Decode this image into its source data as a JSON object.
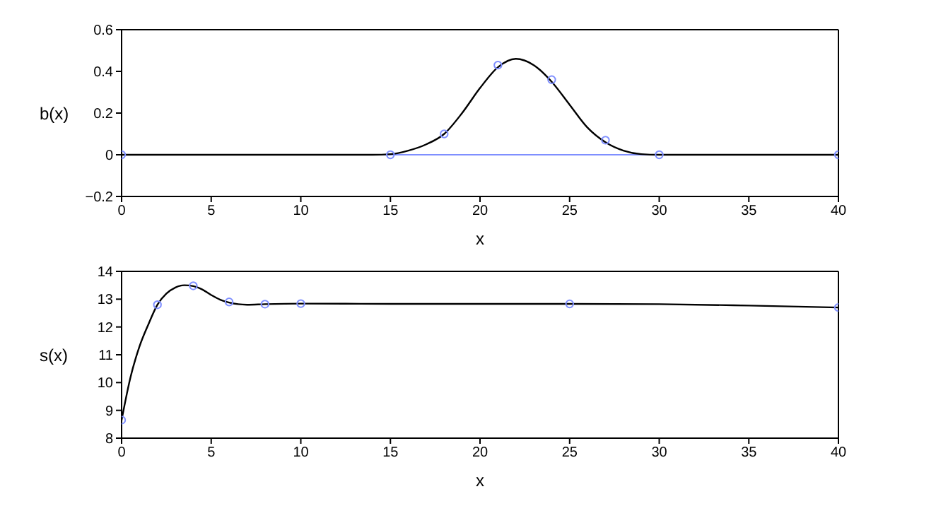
{
  "chart_data": [
    {
      "type": "line",
      "xlabel": "x",
      "ylabel": "b(x)",
      "xlim": [
        0,
        40
      ],
      "xticks": [
        0,
        5,
        10,
        15,
        20,
        25,
        30,
        35,
        40
      ],
      "ylim": [
        -0.2,
        0.6
      ],
      "yticks": [
        -0.2,
        0,
        0.2,
        0.4,
        0.6
      ],
      "grid": false,
      "ref_lines": [
        {
          "axis": "y",
          "value": 0,
          "color": "#7f8fff"
        }
      ],
      "series": [
        {
          "color": "#000000",
          "marker": "none",
          "x": [
            0,
            5,
            10,
            14,
            15,
            16,
            17,
            18,
            19,
            20,
            21,
            22,
            23,
            24,
            25,
            26,
            27,
            28,
            29,
            30,
            35,
            40
          ],
          "values": [
            0,
            0,
            0,
            0,
            0.003,
            0.02,
            0.05,
            0.1,
            0.2,
            0.32,
            0.42,
            0.46,
            0.43,
            0.35,
            0.24,
            0.13,
            0.06,
            0.02,
            0.003,
            0,
            0,
            0
          ]
        },
        {
          "type": "scatter",
          "color": "#7f8fff",
          "marker": "circle",
          "x": [
            0,
            15,
            18,
            21,
            24,
            27,
            30,
            40
          ],
          "values": [
            0,
            0,
            0.1,
            0.43,
            0.36,
            0.07,
            0,
            0
          ]
        }
      ]
    },
    {
      "type": "line",
      "xlabel": "x",
      "ylabel": "s(x)",
      "xlim": [
        0,
        40
      ],
      "xticks": [
        0,
        5,
        10,
        15,
        20,
        25,
        30,
        35,
        40
      ],
      "ylim": [
        8,
        14
      ],
      "yticks": [
        8,
        9,
        10,
        11,
        12,
        13,
        14
      ],
      "grid": false,
      "series": [
        {
          "color": "#000000",
          "marker": "none",
          "x": [
            0,
            0.5,
            1,
            1.5,
            2,
            2.5,
            3,
            3.5,
            4,
            4.5,
            5,
            5.5,
            6,
            6.5,
            7,
            8,
            10,
            15,
            20,
            25,
            30,
            35,
            40
          ],
          "values": [
            8.65,
            10.2,
            11.3,
            12.1,
            12.8,
            13.2,
            13.42,
            13.5,
            13.47,
            13.35,
            13.15,
            12.98,
            12.88,
            12.82,
            12.8,
            12.82,
            12.84,
            12.83,
            12.83,
            12.83,
            12.82,
            12.77,
            12.7
          ]
        },
        {
          "type": "scatter",
          "color": "#7f8fff",
          "marker": "circle",
          "x": [
            0,
            2,
            4,
            6,
            8,
            10,
            25,
            40
          ],
          "values": [
            8.65,
            12.8,
            13.48,
            12.9,
            12.82,
            12.84,
            12.83,
            12.7
          ]
        }
      ]
    }
  ]
}
